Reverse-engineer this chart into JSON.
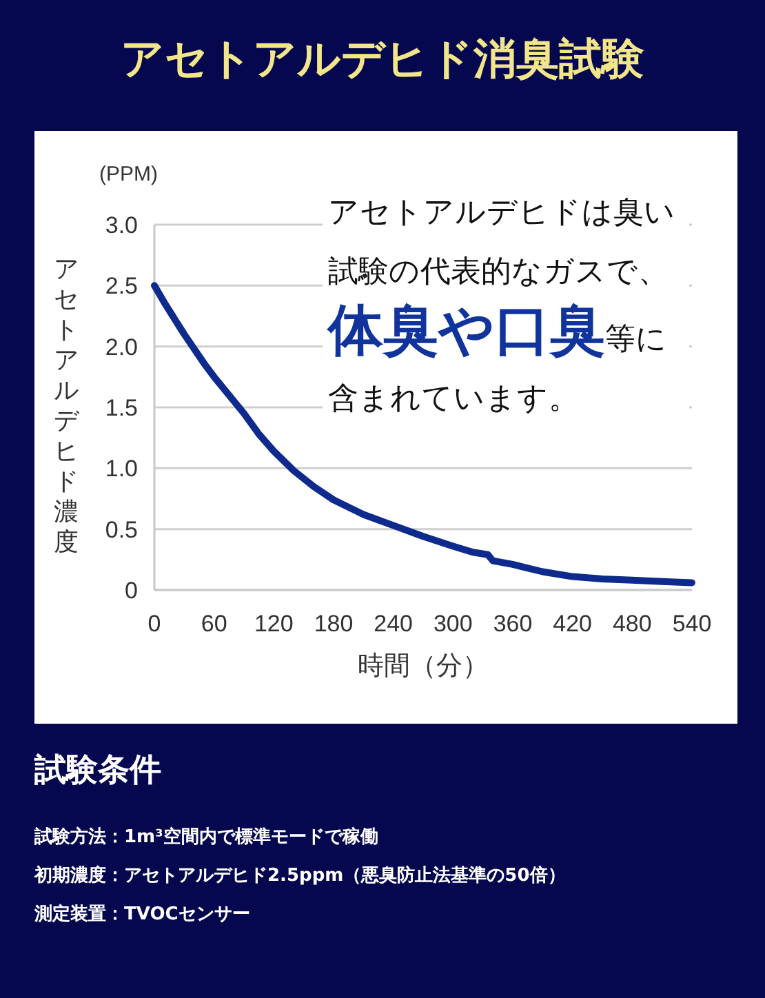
{
  "chart_data": {
    "type": "line",
    "title": "アセトアルデヒド消臭試験",
    "xlabel": "時間（分）",
    "ylabel": "アセトアルデヒド濃度",
    "x": [
      0,
      10,
      20,
      30,
      40,
      50,
      60,
      75,
      90,
      105,
      120,
      140,
      160,
      180,
      210,
      240,
      270,
      300,
      320,
      335,
      340,
      360,
      390,
      420,
      450,
      480,
      510,
      540
    ],
    "series": [
      {
        "color": "#0d2a8c",
        "values": [
          2.5,
          2.36,
          2.23,
          2.1,
          1.98,
          1.86,
          1.75,
          1.6,
          1.45,
          1.28,
          1.14,
          0.98,
          0.85,
          0.74,
          0.62,
          0.53,
          0.44,
          0.36,
          0.31,
          0.29,
          0.24,
          0.21,
          0.15,
          0.11,
          0.09,
          0.08,
          0.07,
          0.06
        ]
      }
    ],
    "xlim": [
      0,
      540
    ],
    "xticks": [
      0,
      60,
      120,
      180,
      240,
      300,
      360,
      420,
      480,
      540
    ],
    "ylim": [
      0,
      3
    ],
    "yticks": [
      {
        "value": 0,
        "label": "0"
      },
      {
        "value": 0.5,
        "label": "0.5"
      },
      {
        "value": 1,
        "label": "1.0"
      },
      {
        "value": 1.5,
        "label": "1.5"
      },
      {
        "value": 2,
        "label": "2.0"
      },
      {
        "value": 2.5,
        "label": "2.5"
      },
      {
        "value": 3,
        "label": "3.0"
      }
    ],
    "grid": "y",
    "line_style": "solid",
    "annotations": [
      "(PPM)",
      "アセトアルデヒドは臭い試験の代表的なガスで、**体臭や口臭**等に含まれています。",
      "試験条件",
      "試験方法：1m³空間内で標準モードで稼働",
      "初期濃度：アセトアルデヒド2.5ppm（悪臭防止法基準の50倍）",
      "測定装置：TVOCセンサー"
    ]
  }
}
